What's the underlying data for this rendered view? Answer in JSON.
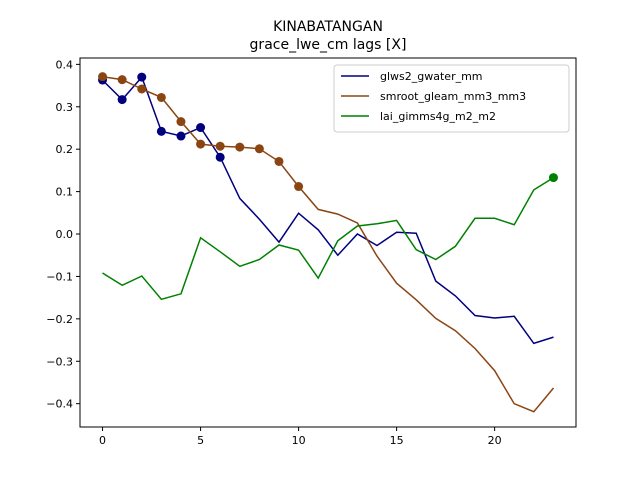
{
  "chart_data": {
    "type": "line",
    "title": "KINABATANGAN",
    "subtitle": "grace_lwe_cm lags [X]",
    "xlabel": "",
    "ylabel": "",
    "xlim": [
      -1.15,
      24.15
    ],
    "ylim": [
      -0.455,
      0.415
    ],
    "xticks": [
      0,
      5,
      10,
      15,
      20
    ],
    "yticks": [
      -0.4,
      -0.3,
      -0.2,
      -0.1,
      0.0,
      0.1,
      0.2,
      0.3,
      0.4
    ],
    "ytick_labels": [
      "−0.4",
      "−0.3",
      "−0.2",
      "−0.1",
      "0.0",
      "0.1",
      "0.2",
      "0.3",
      "0.4"
    ],
    "legend_position": "top-right",
    "x": [
      0,
      1,
      2,
      3,
      4,
      5,
      6,
      7,
      8,
      9,
      10,
      11,
      12,
      13,
      14,
      15,
      16,
      17,
      18,
      19,
      20,
      21,
      22,
      23
    ],
    "series": [
      {
        "name": "glws2_gwater_mm",
        "color": "#00007f",
        "values": [
          0.363,
          0.317,
          0.37,
          0.242,
          0.231,
          0.251,
          0.181,
          0.084,
          0.035,
          -0.019,
          0.049,
          0.01,
          -0.05,
          0.0,
          -0.027,
          0.004,
          0.002,
          -0.111,
          -0.146,
          -0.192,
          -0.198,
          -0.194,
          -0.258,
          -0.243
        ],
        "markers": [
          0,
          1,
          2,
          3,
          4,
          5,
          6
        ]
      },
      {
        "name": "smroot_gleam_mm3_mm3",
        "color": "#8b4513",
        "values": [
          0.371,
          0.364,
          0.342,
          0.322,
          0.265,
          0.212,
          0.207,
          0.205,
          0.201,
          0.171,
          0.112,
          0.058,
          0.047,
          0.026,
          -0.052,
          -0.116,
          -0.155,
          -0.199,
          -0.228,
          -0.27,
          -0.322,
          -0.4,
          -0.419,
          -0.363
        ],
        "markers": [
          0,
          1,
          2,
          3,
          4,
          5,
          6,
          7,
          8,
          9,
          10
        ]
      },
      {
        "name": "lai_gimms4g_m2_m2",
        "color": "#008000",
        "values": [
          -0.092,
          -0.121,
          -0.099,
          -0.154,
          -0.141,
          -0.009,
          -0.042,
          -0.076,
          -0.06,
          -0.026,
          -0.038,
          -0.104,
          -0.016,
          0.019,
          0.024,
          0.032,
          -0.037,
          -0.06,
          -0.029,
          0.037,
          0.037,
          0.022,
          0.104,
          0.133
        ],
        "markers": [
          23
        ]
      }
    ]
  }
}
